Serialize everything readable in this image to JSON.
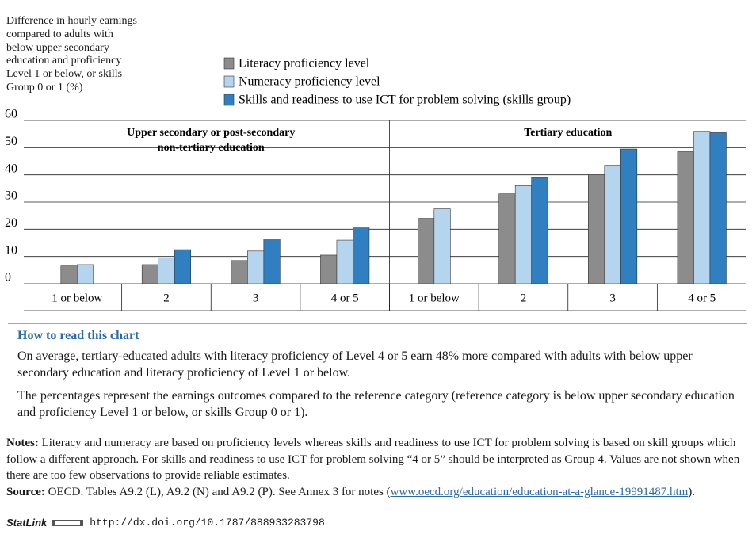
{
  "chart_data": {
    "type": "bar",
    "y_label": "Difference in hourly earnings compared to adults with below upper secondary education and proficiency Level 1 or below, or skills Group 0 or 1 (%)",
    "groups": [
      [
        "Upper secondary or post-secondary",
        "non-tertiary education"
      ],
      [
        "Tertiary education"
      ]
    ],
    "categories": [
      "1 or below",
      "2",
      "3",
      "4 or 5",
      "1 or below",
      "2",
      "3",
      "4 or 5"
    ],
    "series": [
      {
        "name": "Literacy proficiency level",
        "color": "#8c8c8c",
        "values": [
          6.5,
          7,
          8.5,
          10.5,
          24,
          33,
          40,
          48.5
        ]
      },
      {
        "name": "Numeracy proficiency level",
        "color": "#b5d4ee",
        "values": [
          7,
          9.5,
          12,
          16,
          27.5,
          36,
          43.5,
          56
        ]
      },
      {
        "name": "Skills and readiness to use ICT for problem solving (skills group)",
        "color": "#2f7fc1",
        "values": [
          null,
          12.5,
          16.5,
          20.5,
          null,
          39,
          49.5,
          55.5
        ]
      }
    ],
    "ylim": [
      0,
      60
    ],
    "yticks": [
      0,
      10,
      20,
      30,
      40,
      50,
      60
    ],
    "grid": true
  },
  "how_to_read": {
    "title": "How to read this chart",
    "paragraphs": [
      "On average, tertiary-educated adults with literacy proficiency of Level 4 or 5 earn 48% more compared with adults with below upper secondary education and literacy proficiency of Level 1 or below.",
      "The percentages represent the earnings outcomes compared to the reference category (reference category is below upper secondary education and proficiency Level 1 or below, or skills Group 0 or 1)."
    ]
  },
  "notes": {
    "label": "Notes:",
    "text": "Literacy and numeracy are based on proficiency levels whereas skills and readiness to use ICT for problem solving is based on skill groups which follow a different approach. For skills and readiness to use ICT for problem solving “4 or 5” should be interpreted as Group 4. Values are not shown when there are too few observations to provide reliable estimates."
  },
  "source": {
    "label": "Source:",
    "text": "OECD. Tables A9.2 (L), A9.2 (N) and A9.2 (P). See Annex 3 for notes (",
    "link": "www.oecd.org/education/education-at-a-glance-19991487.htm",
    "after": ")."
  },
  "statlink": {
    "label": "StatLink",
    "url": "http://dx.doi.org/10.1787/888933283798"
  }
}
